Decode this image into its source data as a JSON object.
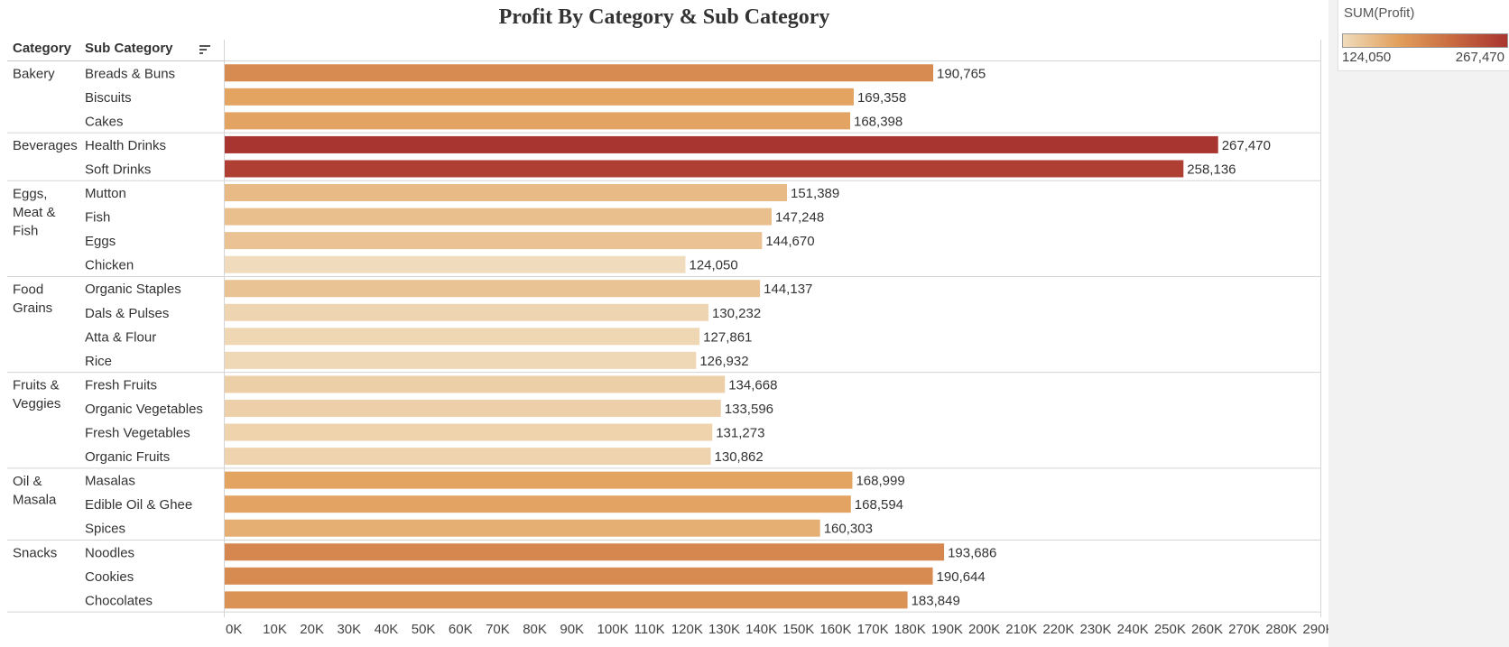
{
  "chart_data": {
    "type": "bar",
    "orientation": "horizontal",
    "title": "Profit By Category & Sub Category",
    "row_headers": [
      "Category",
      "Sub Category"
    ],
    "groups": [
      {
        "category": "Bakery",
        "items": [
          {
            "name": "Breads & Buns",
            "value": 190765,
            "label": "190,765"
          },
          {
            "name": "Biscuits",
            "value": 169358,
            "label": "169,358"
          },
          {
            "name": "Cakes",
            "value": 168398,
            "label": "168,398"
          }
        ]
      },
      {
        "category": "Beverages",
        "items": [
          {
            "name": "Health Drinks",
            "value": 267470,
            "label": "267,470"
          },
          {
            "name": "Soft Drinks",
            "value": 258136,
            "label": "258,136"
          }
        ]
      },
      {
        "category": "Eggs, Meat & Fish",
        "category_lines": [
          "Eggs,",
          "Meat &",
          "Fish"
        ],
        "items": [
          {
            "name": "Mutton",
            "value": 151389,
            "label": "151,389"
          },
          {
            "name": "Fish",
            "value": 147248,
            "label": "147,248"
          },
          {
            "name": "Eggs",
            "value": 144670,
            "label": "144,670"
          },
          {
            "name": "Chicken",
            "value": 124050,
            "label": "124,050"
          }
        ]
      },
      {
        "category": "Food Grains",
        "category_lines": [
          "Food",
          "Grains"
        ],
        "items": [
          {
            "name": "Organic Staples",
            "value": 144137,
            "label": "144,137"
          },
          {
            "name": "Dals & Pulses",
            "value": 130232,
            "label": "130,232"
          },
          {
            "name": "Atta & Flour",
            "value": 127861,
            "label": "127,861"
          },
          {
            "name": "Rice",
            "value": 126932,
            "label": "126,932"
          }
        ]
      },
      {
        "category": "Fruits & Veggies",
        "category_lines": [
          "Fruits &",
          "Veggies"
        ],
        "items": [
          {
            "name": "Fresh Fruits",
            "value": 134668,
            "label": "134,668"
          },
          {
            "name": "Organic Vegetables",
            "value": 133596,
            "label": "133,596"
          },
          {
            "name": "Fresh Vegetables",
            "value": 131273,
            "label": "131,273"
          },
          {
            "name": "Organic Fruits",
            "value": 130862,
            "label": "130,862"
          }
        ]
      },
      {
        "category": "Oil & Masala",
        "category_lines": [
          "Oil &",
          "Masala"
        ],
        "items": [
          {
            "name": "Masalas",
            "value": 168999,
            "label": "168,999"
          },
          {
            "name": "Edible Oil & Ghee",
            "value": 168594,
            "label": "168,594"
          },
          {
            "name": "Spices",
            "value": 160303,
            "label": "160,303"
          }
        ]
      },
      {
        "category": "Snacks",
        "items": [
          {
            "name": "Noodles",
            "value": 193686,
            "label": "193,686"
          },
          {
            "name": "Cookies",
            "value": 190644,
            "label": "190,644"
          },
          {
            "name": "Chocolates",
            "value": 183849,
            "label": "183,849"
          }
        ]
      }
    ],
    "x_ticks": [
      "0K",
      "10K",
      "20K",
      "30K",
      "40K",
      "50K",
      "60K",
      "70K",
      "80K",
      "90K",
      "100K",
      "110K",
      "120K",
      "130K",
      "140K",
      "150K",
      "160K",
      "170K",
      "180K",
      "190K",
      "200K",
      "210K",
      "220K",
      "230K",
      "240K",
      "250K",
      "260K",
      "270K",
      "280K",
      "290K"
    ],
    "xlim": [
      0,
      295000
    ],
    "color_legend": {
      "title": "SUM(Profit)",
      "min_label": "124,050",
      "max_label": "267,470",
      "min_value": 124050,
      "max_value": 267470,
      "colors": [
        "#f0dcbc",
        "#e2a05c",
        "#c86a40",
        "#a93530"
      ]
    }
  }
}
